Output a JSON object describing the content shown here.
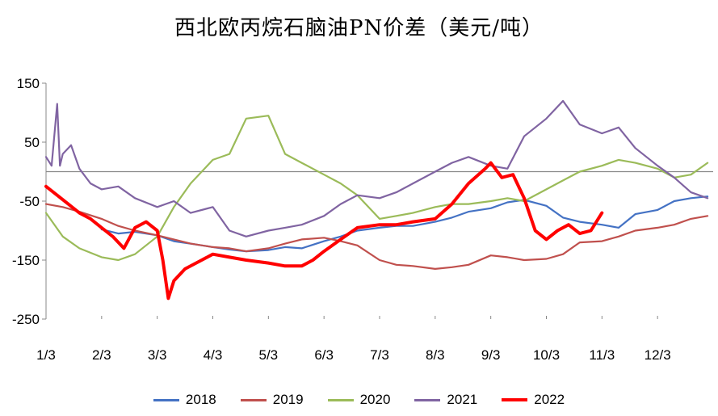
{
  "chart_data": {
    "type": "line",
    "title": "西北欧丙烷石脑油PN价差（美元/吨）",
    "xlabel": "",
    "ylabel": "",
    "x_tick_labels": [
      "1/3",
      "2/3",
      "3/3",
      "4/3",
      "5/3",
      "6/3",
      "7/3",
      "8/3",
      "9/3",
      "10/3",
      "11/3",
      "12/3"
    ],
    "y_tick_labels": [
      "150",
      "50",
      "-50",
      "-150",
      "-250"
    ],
    "ylim": [
      -250,
      150
    ],
    "xlim": [
      1,
      13
    ],
    "grid": false,
    "legend_position": "bottom",
    "zero_line": true,
    "series": [
      {
        "name": "2018",
        "color": "#4472C4",
        "width": 2.2,
        "x": [
          2,
          2.3,
          2.6,
          3,
          3.3,
          3.6,
          4,
          4.3,
          4.6,
          5,
          5.3,
          5.6,
          6,
          6.3,
          6.6,
          7,
          7.3,
          7.6,
          8,
          8.3,
          8.6,
          9,
          9.3,
          9.6,
          10,
          10.3,
          10.6,
          11,
          11.3,
          11.6,
          12,
          12.3,
          12.6,
          12.9
        ],
        "y": [
          -98,
          -105,
          -102,
          -108,
          -118,
          -122,
          -128,
          -132,
          -135,
          -133,
          -128,
          -130,
          -118,
          -110,
          -100,
          -95,
          -92,
          -92,
          -85,
          -78,
          -68,
          -62,
          -52,
          -48,
          -58,
          -78,
          -85,
          -90,
          -95,
          -72,
          -65,
          -50,
          -45,
          -42
        ]
      },
      {
        "name": "2019",
        "color": "#C0504D",
        "width": 2.2,
        "x": [
          1,
          1.3,
          1.6,
          2,
          2.3,
          2.6,
          3,
          3.3,
          3.6,
          4,
          4.3,
          4.6,
          5,
          5.3,
          5.6,
          6,
          6.3,
          6.6,
          7,
          7.3,
          7.6,
          8,
          8.3,
          8.6,
          9,
          9.3,
          9.6,
          10,
          10.3,
          10.6,
          11,
          11.3,
          11.6,
          12,
          12.3,
          12.6,
          12.9
        ],
        "y": [
          -55,
          -60,
          -68,
          -80,
          -92,
          -100,
          -108,
          -115,
          -122,
          -128,
          -130,
          -135,
          -130,
          -122,
          -115,
          -112,
          -118,
          -125,
          -150,
          -158,
          -160,
          -165,
          -162,
          -158,
          -142,
          -145,
          -150,
          -148,
          -140,
          -120,
          -118,
          -110,
          -100,
          -95,
          -90,
          -80,
          -75
        ]
      },
      {
        "name": "2020",
        "color": "#9BBB59",
        "width": 2.2,
        "x": [
          1,
          1.3,
          1.6,
          2,
          2.3,
          2.6,
          3,
          3.3,
          3.6,
          4,
          4.3,
          4.6,
          5,
          5.3,
          5.6,
          6,
          6.3,
          6.6,
          7,
          7.3,
          7.6,
          8,
          8.3,
          8.6,
          9,
          9.3,
          9.6,
          10,
          10.3,
          10.6,
          11,
          11.3,
          11.6,
          12,
          12.3,
          12.6,
          12.9
        ],
        "y": [
          -70,
          -110,
          -130,
          -145,
          -150,
          -140,
          -110,
          -60,
          -20,
          20,
          30,
          90,
          95,
          30,
          15,
          -5,
          -20,
          -40,
          -80,
          -75,
          -70,
          -60,
          -55,
          -55,
          -50,
          -45,
          -50,
          -30,
          -15,
          0,
          10,
          20,
          15,
          5,
          -10,
          -5,
          15
        ]
      },
      {
        "name": "2021",
        "color": "#8064A2",
        "width": 2.2,
        "x": [
          1,
          1.1,
          1.2,
          1.25,
          1.3,
          1.45,
          1.6,
          1.8,
          2,
          2.3,
          2.6,
          3,
          3.3,
          3.6,
          4,
          4.3,
          4.6,
          5,
          5.3,
          5.6,
          6,
          6.3,
          6.6,
          7,
          7.3,
          7.6,
          8,
          8.3,
          8.6,
          9,
          9.3,
          9.6,
          10,
          10.3,
          10.6,
          11,
          11.3,
          11.6,
          12,
          12.3,
          12.6,
          12.9
        ],
        "y": [
          25,
          10,
          115,
          10,
          30,
          45,
          5,
          -20,
          -30,
          -25,
          -45,
          -60,
          -50,
          -70,
          -60,
          -100,
          -110,
          -100,
          -95,
          -90,
          -75,
          -55,
          -40,
          -45,
          -35,
          -20,
          0,
          15,
          25,
          10,
          5,
          60,
          90,
          120,
          80,
          65,
          75,
          40,
          10,
          -10,
          -35,
          -45
        ]
      },
      {
        "name": "2022",
        "color": "#FF0000",
        "width": 4,
        "x": [
          1,
          1.2,
          1.4,
          1.6,
          1.8,
          2,
          2.2,
          2.4,
          2.6,
          2.8,
          3,
          3.1,
          3.2,
          3.3,
          3.5,
          3.8,
          4,
          4.3,
          4.6,
          5,
          5.3,
          5.6,
          5.8,
          6,
          6.3,
          6.6,
          7,
          7.3,
          7.6,
          8,
          8.3,
          8.6,
          8.9,
          9,
          9.2,
          9.4,
          9.6,
          9.8,
          10,
          10.2,
          10.4,
          10.6,
          10.8,
          11
        ],
        "y": [
          -25,
          -40,
          -55,
          -70,
          -80,
          -95,
          -110,
          -130,
          -95,
          -85,
          -100,
          -150,
          -215,
          -185,
          -165,
          -150,
          -140,
          -145,
          -150,
          -155,
          -160,
          -160,
          -150,
          -135,
          -115,
          -95,
          -90,
          -90,
          -85,
          -80,
          -55,
          -20,
          5,
          15,
          -10,
          -5,
          -45,
          -100,
          -115,
          -100,
          -90,
          -105,
          -100,
          -70
        ]
      }
    ]
  }
}
